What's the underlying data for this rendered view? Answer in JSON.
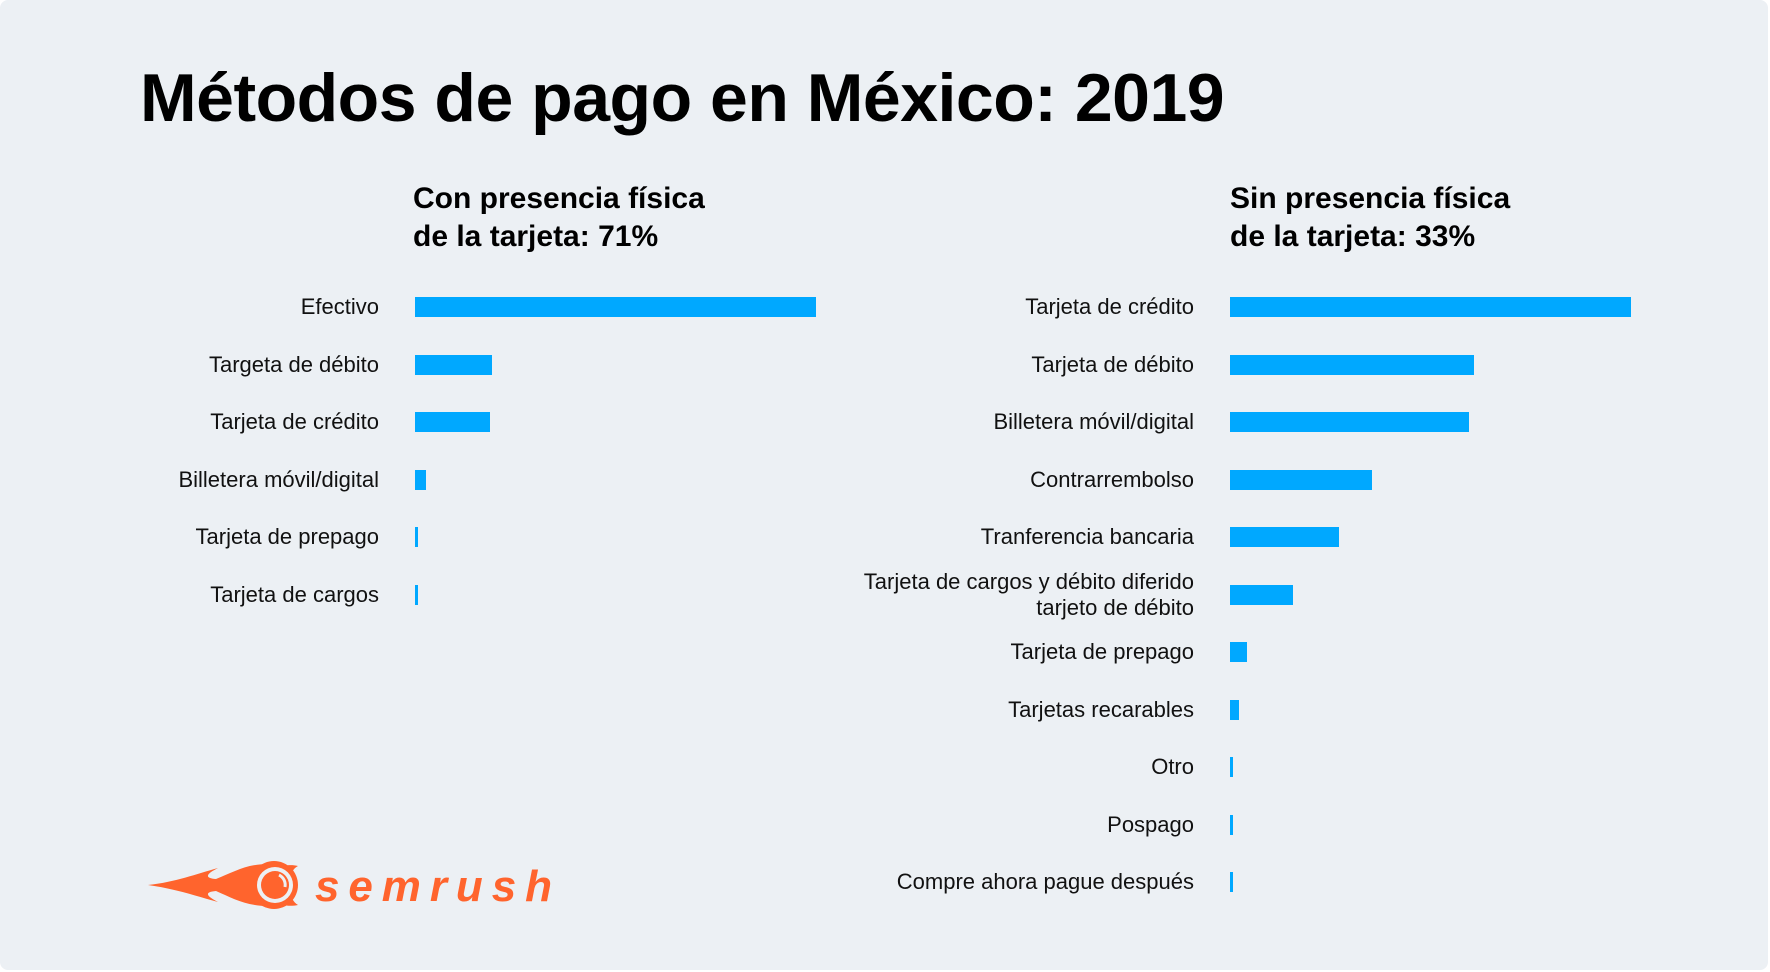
{
  "title": "Métodos de pago en México: 2019",
  "bar_color": "#00a8ff",
  "brand": {
    "name": "semrush",
    "color": "#ff642d"
  },
  "chart_data": [
    {
      "type": "bar",
      "orientation": "horizontal",
      "title_lines": [
        "Con presencia física",
        "de la tarjeta: 71%"
      ],
      "categories": [
        "Efectivo",
        "Targeta de débito",
        "Tarjeta de crédito",
        "Billetera móvil/digital",
        "Tarjeta de prepago",
        "Tarjeta de cargos"
      ],
      "values": [
        79,
        15.2,
        14.8,
        2.2,
        0.5,
        0.5
      ],
      "unit": "% (estimated from bar length, no axis shown)",
      "xlabel": "",
      "ylabel": "",
      "xlim": [
        0,
        79
      ],
      "grid": false,
      "legend": "none"
    },
    {
      "type": "bar",
      "orientation": "horizontal",
      "title_lines": [
        "Sin presencia física",
        "de la tarjeta: 33%"
      ],
      "categories": [
        "Tarjeta de crédito",
        "Tarjeta de débito",
        "Billetera móvil/digital",
        "Contrarrembolso",
        "Tranferencia bancaria",
        [
          "Tarjeta de cargos y débito diferido",
          "tarjeto de débito"
        ],
        "Tarjeta de prepago",
        "Tarjetas recarables",
        "Otro",
        "Pospago",
        "Compre ahora pague después"
      ],
      "values": [
        31,
        18.9,
        18.5,
        11,
        8.4,
        4.9,
        1.3,
        0.7,
        0.2,
        0.2,
        0.2
      ],
      "unit": "% (estimated from bar length, no axis shown)",
      "xlabel": "",
      "ylabel": "",
      "xlim": [
        0,
        31
      ],
      "grid": false,
      "legend": "none"
    }
  ]
}
